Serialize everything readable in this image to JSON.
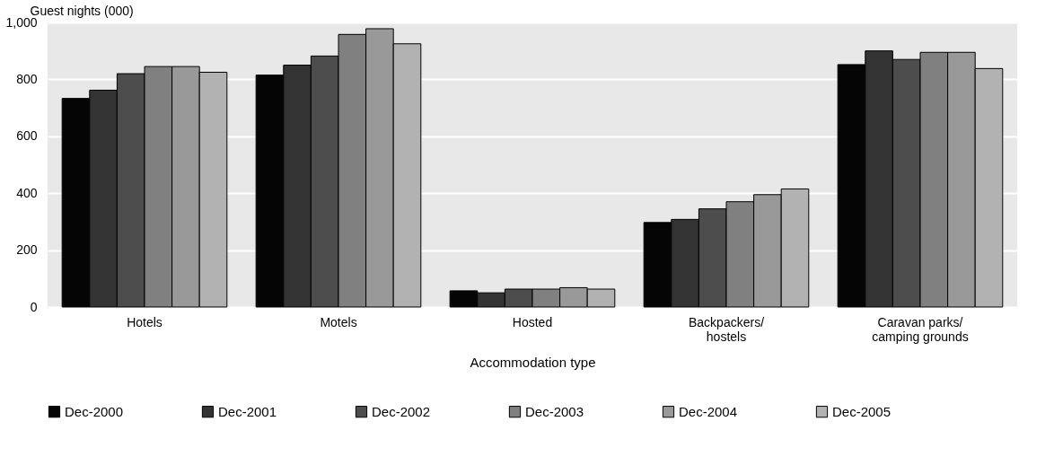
{
  "chart_data": {
    "type": "bar",
    "categories": [
      "Hotels",
      "Motels",
      "Hosted",
      "Backpackers/\nhostels",
      "Caravan parks/\ncamping grounds"
    ],
    "xlabel": "Accommodation type",
    "ylabel": "Guest nights (000)",
    "series": [
      {
        "name": "Dec-2000",
        "color": "#050505",
        "values": [
          733,
          815,
          57,
          297,
          852
        ]
      },
      {
        "name": "Dec-2001",
        "color": "#333333",
        "values": [
          762,
          850,
          50,
          308,
          900
        ]
      },
      {
        "name": "Dec-2002",
        "color": "#4d4d4d",
        "values": [
          820,
          882,
          63,
          345,
          870
        ]
      },
      {
        "name": "Dec-2003",
        "color": "#808080",
        "values": [
          845,
          958,
          63,
          370,
          895
        ]
      },
      {
        "name": "Dec-2004",
        "color": "#999999",
        "values": [
          845,
          978,
          68,
          395,
          895
        ]
      },
      {
        "name": "Dec-2005",
        "color": "#b2b2b2",
        "values": [
          825,
          925,
          63,
          415,
          838
        ]
      }
    ],
    "ylim": [
      0,
      1000
    ],
    "yticks": [
      0,
      200,
      400,
      600,
      800,
      {
        "value": 1000,
        "label": "1,000"
      }
    ],
    "grid": "y",
    "legend": "bottom"
  }
}
